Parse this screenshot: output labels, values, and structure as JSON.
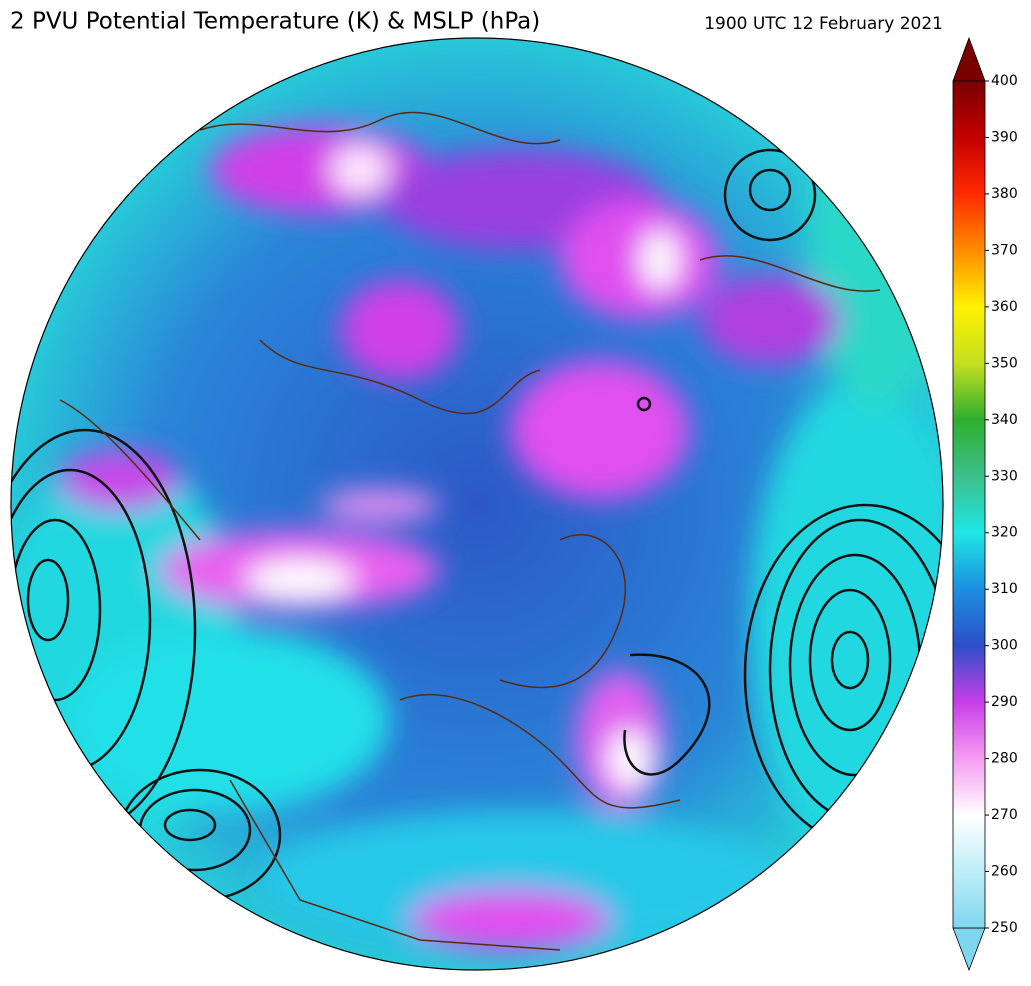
{
  "header": {
    "title": "2 PVU Potential Temperature (K) & MSLP (hPa)",
    "timestamp": "1900 UTC 12 February 2021"
  },
  "colorbar": {
    "range": [
      250,
      400
    ],
    "ticks": [
      250,
      260,
      270,
      280,
      290,
      300,
      310,
      320,
      330,
      340,
      350,
      360,
      370,
      380,
      390,
      400
    ],
    "colors": [
      "#7fd6ef",
      "#bdeef9",
      "#ffffff",
      "#f59cf0",
      "#c83ee8",
      "#2c4fc8",
      "#1c8fe0",
      "#1fe6e6",
      "#3cc08a",
      "#2fae2f",
      "#c4e020",
      "#fff200",
      "#ff8c00",
      "#ff2a00",
      "#c40000",
      "#7a0000"
    ]
  }
}
